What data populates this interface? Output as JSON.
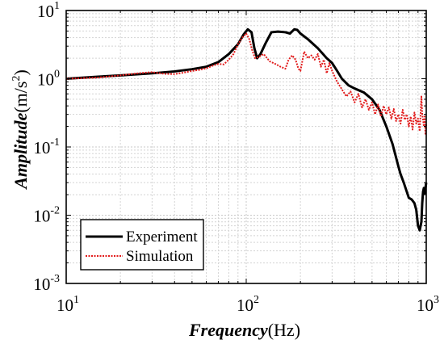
{
  "chart_data": {
    "type": "line",
    "xlabel": {
      "italic": "Frequency",
      "unit": "(Hz)"
    },
    "ylabel": {
      "italic": "Amplitude",
      "unit_base": "(m/s",
      "unit_exp": "2",
      "unit_end": ")"
    },
    "x_scale": "log",
    "y_scale": "log",
    "xlim": [
      10,
      1000
    ],
    "ylim": [
      0.001,
      10
    ],
    "grid": true,
    "x_ticks": [
      {
        "value": 10,
        "base": "10",
        "exp": "1"
      },
      {
        "value": 100,
        "base": "10",
        "exp": "2"
      },
      {
        "value": 1000,
        "base": "10",
        "exp": "3"
      }
    ],
    "y_ticks": [
      {
        "value": 10,
        "base": "10",
        "exp": "1"
      },
      {
        "value": 1,
        "base": "10",
        "exp": "0"
      },
      {
        "value": 0.1,
        "base": "10",
        "exp": "-1"
      },
      {
        "value": 0.01,
        "base": "10",
        "exp": "-2"
      },
      {
        "value": 0.001,
        "base": "10",
        "exp": "-3"
      }
    ],
    "legend_position": "bottom-left",
    "series": [
      {
        "name": "Experiment",
        "color": "#000000",
        "style": "solid",
        "points": [
          [
            10,
            1.0
          ],
          [
            15,
            1.07
          ],
          [
            20,
            1.12
          ],
          [
            30,
            1.2
          ],
          [
            40,
            1.28
          ],
          [
            50,
            1.38
          ],
          [
            60,
            1.5
          ],
          [
            70,
            1.75
          ],
          [
            80,
            2.3
          ],
          [
            90,
            3.2
          ],
          [
            97,
            4.5
          ],
          [
            102,
            5.3
          ],
          [
            107,
            4.8
          ],
          [
            111,
            2.8
          ],
          [
            115,
            2.0
          ],
          [
            120,
            2.3
          ],
          [
            128,
            3.3
          ],
          [
            138,
            4.8
          ],
          [
            150,
            4.9
          ],
          [
            165,
            4.8
          ],
          [
            175,
            4.6
          ],
          [
            185,
            5.3
          ],
          [
            192,
            5.2
          ],
          [
            200,
            4.6
          ],
          [
            220,
            3.8
          ],
          [
            250,
            2.8
          ],
          [
            280,
            2.0
          ],
          [
            300,
            1.7
          ],
          [
            320,
            1.3
          ],
          [
            340,
            1.0
          ],
          [
            370,
            0.8
          ],
          [
            400,
            0.72
          ],
          [
            450,
            0.63
          ],
          [
            500,
            0.5
          ],
          [
            550,
            0.35
          ],
          [
            600,
            0.2
          ],
          [
            650,
            0.11
          ],
          [
            680,
            0.07
          ],
          [
            700,
            0.052
          ],
          [
            720,
            0.04
          ],
          [
            750,
            0.03
          ],
          [
            780,
            0.022
          ],
          [
            800,
            0.018
          ],
          [
            830,
            0.017
          ],
          [
            860,
            0.015
          ],
          [
            880,
            0.012
          ],
          [
            900,
            0.007
          ],
          [
            920,
            0.006
          ],
          [
            940,
            0.008
          ],
          [
            950,
            0.015
          ],
          [
            960,
            0.022
          ],
          [
            970,
            0.025
          ],
          [
            980,
            0.021
          ],
          [
            1000,
            0.03
          ]
        ]
      },
      {
        "name": "Simulation",
        "color": "#e21b1b",
        "style": "dotted",
        "points": [
          [
            10,
            1.0
          ],
          [
            15,
            1.04
          ],
          [
            20,
            1.12
          ],
          [
            25,
            1.2
          ],
          [
            30,
            1.25
          ],
          [
            35,
            1.18
          ],
          [
            40,
            1.17
          ],
          [
            45,
            1.23
          ],
          [
            50,
            1.3
          ],
          [
            55,
            1.35
          ],
          [
            60,
            1.42
          ],
          [
            65,
            1.55
          ],
          [
            70,
            1.65
          ],
          [
            75,
            1.62
          ],
          [
            80,
            1.9
          ],
          [
            85,
            2.3
          ],
          [
            90,
            3.2
          ],
          [
            95,
            4.0
          ],
          [
            100,
            4.6
          ],
          [
            104,
            3.8
          ],
          [
            108,
            2.6
          ],
          [
            112,
            2.0
          ],
          [
            118,
            2.1
          ],
          [
            125,
            2.3
          ],
          [
            135,
            1.8
          ],
          [
            145,
            1.65
          ],
          [
            155,
            1.5
          ],
          [
            165,
            1.4
          ],
          [
            172,
            1.9
          ],
          [
            180,
            2.2
          ],
          [
            188,
            1.9
          ],
          [
            195,
            1.4
          ],
          [
            200,
            1.3
          ],
          [
            210,
            2.5
          ],
          [
            220,
            2.0
          ],
          [
            230,
            2.2
          ],
          [
            240,
            1.9
          ],
          [
            250,
            2.3
          ],
          [
            260,
            1.5
          ],
          [
            270,
            1.9
          ],
          [
            280,
            1.2
          ],
          [
            290,
            1.7
          ],
          [
            300,
            1.3
          ],
          [
            320,
            0.9
          ],
          [
            340,
            0.7
          ],
          [
            360,
            0.55
          ],
          [
            380,
            0.65
          ],
          [
            400,
            0.45
          ],
          [
            420,
            0.6
          ],
          [
            440,
            0.38
          ],
          [
            460,
            0.5
          ],
          [
            480,
            0.35
          ],
          [
            500,
            0.45
          ],
          [
            520,
            0.3
          ],
          [
            540,
            0.42
          ],
          [
            560,
            0.28
          ],
          [
            580,
            0.4
          ],
          [
            600,
            0.3
          ],
          [
            620,
            0.38
          ],
          [
            640,
            0.26
          ],
          [
            660,
            0.36
          ],
          [
            680,
            0.24
          ],
          [
            700,
            0.3
          ],
          [
            720,
            0.22
          ],
          [
            740,
            0.35
          ],
          [
            760,
            0.25
          ],
          [
            780,
            0.3
          ],
          [
            800,
            0.2
          ],
          [
            820,
            0.28
          ],
          [
            840,
            0.18
          ],
          [
            860,
            0.32
          ],
          [
            880,
            0.22
          ],
          [
            900,
            0.26
          ],
          [
            920,
            0.17
          ],
          [
            940,
            0.55
          ],
          [
            950,
            0.3
          ],
          [
            960,
            0.25
          ],
          [
            970,
            0.2
          ],
          [
            980,
            0.28
          ],
          [
            990,
            0.15
          ],
          [
            1000,
            0.22
          ]
        ]
      }
    ]
  }
}
